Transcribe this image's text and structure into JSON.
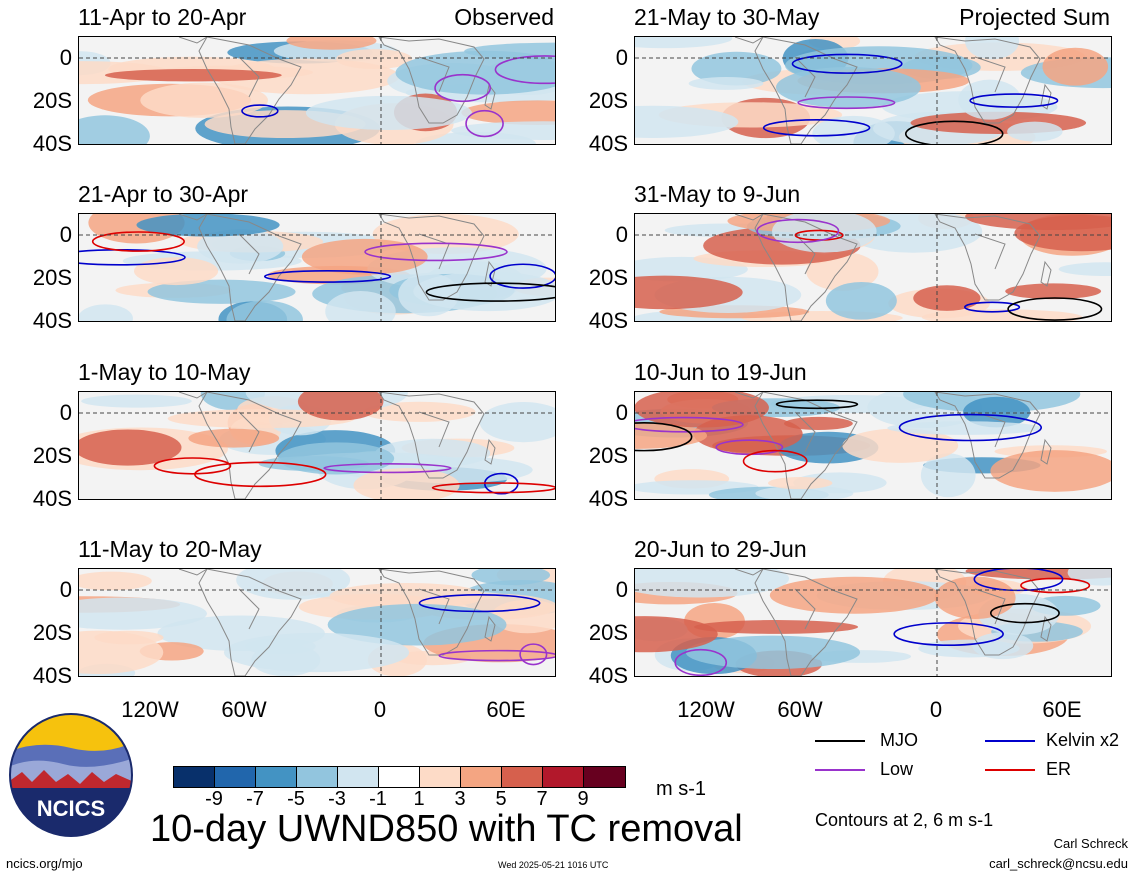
{
  "chart_data": {
    "type": "heatmap",
    "title": "10-day UWND850 with TC removal",
    "units": "m s-1",
    "contour_note": "Contours at 2, 6 m s-1",
    "left_tag": "Observed",
    "right_tag": "Projected Sum",
    "y_ticks": [
      "0",
      "20S",
      "40S"
    ],
    "x_ticks": [
      "120W",
      "60W",
      "0",
      "60E"
    ],
    "lat_range": [
      "10N",
      "40S"
    ],
    "colorbar": {
      "colors": [
        "#08306b",
        "#2166ac",
        "#4393c3",
        "#92c5de",
        "#d1e5f0",
        "#ffffff",
        "#fddbc7",
        "#f4a582",
        "#d6604d",
        "#b2182b",
        "#67001f"
      ],
      "labels": [
        "-9",
        "-7",
        "-5",
        "-3",
        "-1",
        "1",
        "3",
        "5",
        "7",
        "9"
      ]
    },
    "legend": [
      {
        "name": "MJO",
        "color": "#000000"
      },
      {
        "name": "Kelvin x2",
        "color": "#0000cc"
      },
      {
        "name": "Low",
        "color": "#9933cc"
      },
      {
        "name": "ER",
        "color": "#dd0000"
      }
    ],
    "panels": [
      {
        "period": "11-Apr to 20-Apr",
        "column": "left",
        "row": 0
      },
      {
        "period": "21-Apr to 30-Apr",
        "column": "left",
        "row": 1
      },
      {
        "period": "1-May to 10-May",
        "column": "left",
        "row": 2
      },
      {
        "period": "11-May to 20-May",
        "column": "left",
        "row": 3
      },
      {
        "period": "21-May to 30-May",
        "column": "right",
        "row": 0
      },
      {
        "period": "31-May to 9-Jun",
        "column": "right",
        "row": 1
      },
      {
        "period": "10-Jun to 19-Jun",
        "column": "right",
        "row": 2
      },
      {
        "period": "20-Jun to 29-Jun",
        "column": "right",
        "row": 3
      }
    ]
  },
  "logo_text": "NCICS",
  "footer": {
    "url": "ncics.org/mjo",
    "timestamp": "Wed 2025-05-21 1016 UTC",
    "author": "Carl Schreck",
    "email": "carl_schreck@ncsu.edu"
  }
}
